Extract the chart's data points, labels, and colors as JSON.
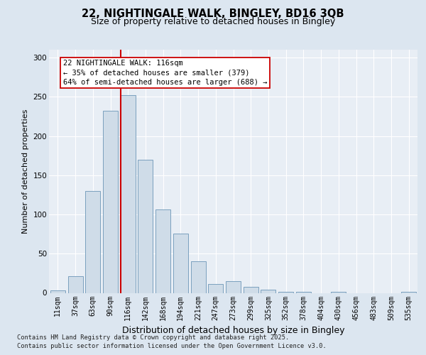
{
  "title_line1": "22, NIGHTINGALE WALK, BINGLEY, BD16 3QB",
  "title_line2": "Size of property relative to detached houses in Bingley",
  "xlabel": "Distribution of detached houses by size in Bingley",
  "ylabel": "Number of detached properties",
  "categories": [
    "11sqm",
    "37sqm",
    "63sqm",
    "90sqm",
    "116sqm",
    "142sqm",
    "168sqm",
    "194sqm",
    "221sqm",
    "247sqm",
    "273sqm",
    "299sqm",
    "325sqm",
    "352sqm",
    "378sqm",
    "404sqm",
    "430sqm",
    "456sqm",
    "483sqm",
    "509sqm",
    "535sqm"
  ],
  "values": [
    3,
    21,
    130,
    232,
    252,
    170,
    106,
    76,
    40,
    11,
    15,
    8,
    4,
    1,
    1,
    0,
    1,
    0,
    0,
    0,
    1
  ],
  "bar_color": "#cfdce8",
  "bar_edge_color": "#7aa0be",
  "highlight_index": 4,
  "highlight_color": "#cc0000",
  "annotation_text": "22 NIGHTINGALE WALK: 116sqm\n← 35% of detached houses are smaller (379)\n64% of semi-detached houses are larger (688) →",
  "annotation_box_color": "#ffffff",
  "annotation_box_edge": "#cc0000",
  "ylim": [
    0,
    310
  ],
  "yticks": [
    0,
    50,
    100,
    150,
    200,
    250,
    300
  ],
  "footer_line1": "Contains HM Land Registry data © Crown copyright and database right 2025.",
  "footer_line2": "Contains public sector information licensed under the Open Government Licence v3.0.",
  "background_color": "#dce6f0",
  "plot_bg_color": "#e8eef5",
  "grid_color": "#ffffff",
  "title1_fontsize": 10.5,
  "title2_fontsize": 9,
  "ylabel_fontsize": 8,
  "xlabel_fontsize": 9,
  "tick_fontsize": 7,
  "footer_fontsize": 6.2,
  "ann_fontsize": 7.5
}
